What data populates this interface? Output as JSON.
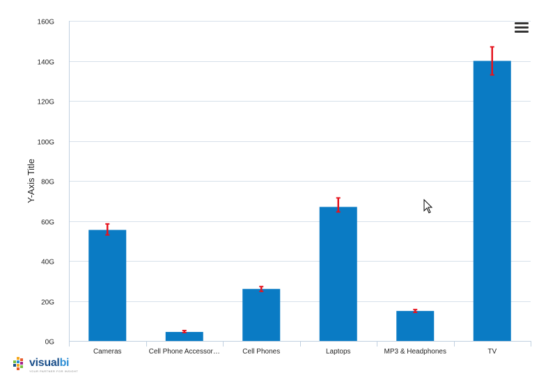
{
  "chart_data": {
    "type": "bar",
    "title": "",
    "xlabel": "",
    "ylabel": "Y-Axis Title",
    "categories": [
      "Cameras",
      "Cell Phone Accessor…",
      "Cell Phones",
      "Laptops",
      "MP3 & Headphones",
      "TV"
    ],
    "values": [
      55.5,
      4.5,
      26,
      67,
      15,
      140
    ],
    "error_bars": [
      {
        "low": 53,
        "high": 58.5
      },
      {
        "low": 4.2,
        "high": 5.2
      },
      {
        "low": 24.8,
        "high": 27.2
      },
      {
        "low": 64.5,
        "high": 71.5
      },
      {
        "low": 14.3,
        "high": 15.7
      },
      {
        "low": 133,
        "high": 147
      }
    ],
    "y_ticks": [
      0,
      20,
      40,
      60,
      80,
      100,
      120,
      140,
      160
    ],
    "y_tick_suffix": "G",
    "ylim": [
      0,
      160
    ],
    "grid": true,
    "legend": "none",
    "colors": {
      "bar": "#0a7bc4",
      "error": "#e5141e",
      "grid": "#d6e0ea",
      "axis": "#c0d0e0",
      "text": "#222222"
    }
  },
  "logo": {
    "text_main": "visual",
    "text_highlight": "bi",
    "tagline": "YOUR PARTNER FOR INSIGHT"
  },
  "toolbar": {
    "menu_icon": "hamburger-menu-icon"
  }
}
